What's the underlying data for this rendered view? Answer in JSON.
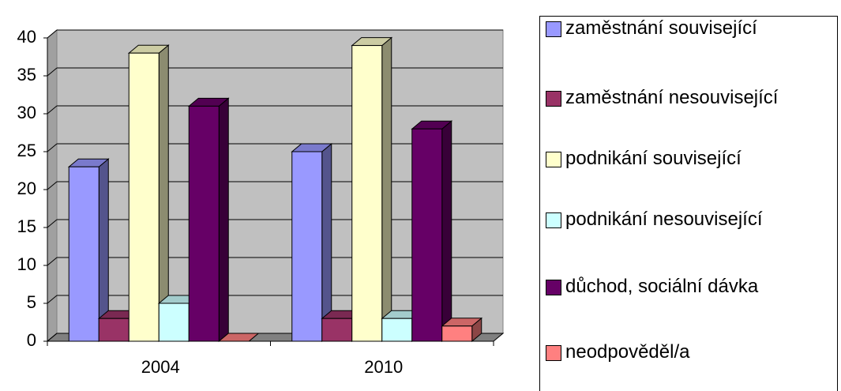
{
  "chart_data": {
    "type": "bar3d",
    "categories": [
      "2004",
      "2010"
    ],
    "series": [
      {
        "name": "zaměstnání související",
        "color": "#9999FF",
        "values": [
          23,
          25
        ]
      },
      {
        "name": "zaměstnání nesouvisející",
        "color": "#993366",
        "values": [
          3,
          3
        ]
      },
      {
        "name": "podnikání související",
        "color": "#FFFFCC",
        "values": [
          38,
          39
        ]
      },
      {
        "name": "podnikání nesouvisející",
        "color": "#CCFFFF",
        "values": [
          5,
          3
        ]
      },
      {
        "name": "důchod, sociální dávka",
        "color": "#660066",
        "values": [
          31,
          28
        ]
      },
      {
        "name": "neodpověděl/a",
        "color": "#FF8080",
        "values": [
          0,
          2
        ]
      }
    ],
    "ylim": [
      0,
      40
    ],
    "yticks": [
      0,
      5,
      10,
      15,
      20,
      25,
      30,
      35,
      40
    ],
    "grid": true,
    "legend": "right"
  }
}
